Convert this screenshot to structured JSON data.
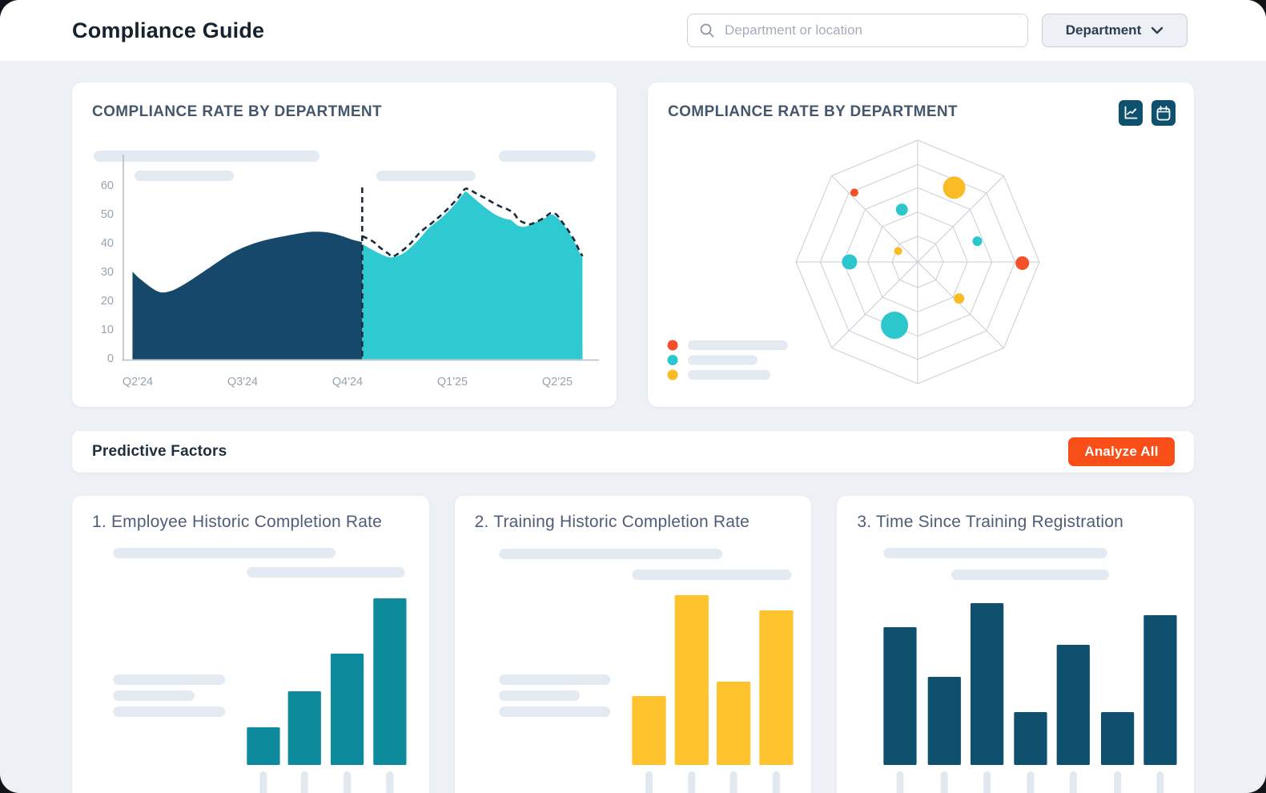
{
  "header": {
    "title": "Compliance Guide",
    "search_placeholder": "Department or location",
    "search_icon": "search-icon",
    "filter_label": "Department",
    "filter_icon": "chevron-down-icon"
  },
  "charts_row": {
    "area_card_title": "COMPLIANCE RATE BY DEPARTMENT",
    "radar_card_title": "COMPLIANCE RATE BY DEPARTMENT",
    "radar_card_icons": [
      "line-chart-icon",
      "calendar-icon"
    ]
  },
  "predictive": {
    "title": "Predictive Factors",
    "analyze_button_label": "Analyze All"
  },
  "factor_cards": [
    {
      "title": "1. Employee Historic Completion Rate"
    },
    {
      "title": "2. Training Historic Completion Rate"
    },
    {
      "title": "3. Time Since Training Registration"
    }
  ],
  "colors": {
    "navy": "#15486b",
    "navy_dark": "#0f506f",
    "teal_area": "#2fc9d2",
    "teal_bar": "#0e8a9d",
    "yellow": "#ffc32e",
    "orange": "#f94e18",
    "bubble_red": "#f4502a",
    "bubble_teal": "#2bc7cd",
    "bubble_yellow": "#f9bc25",
    "axis_line": "#b6bec7",
    "tick_label": "#98a3af",
    "grid": "#c9ced6",
    "skeleton": "#e4eaf2",
    "dash": "#1b2a38"
  },
  "chart_data": [
    {
      "id": "compliance-trend",
      "type": "area",
      "title": "COMPLIANCE RATE BY DEPARTMENT",
      "x_categories": [
        "Q2'24",
        "Q3'24",
        "Q4'24",
        "Q1'25",
        "Q2'25"
      ],
      "x_unit": "quarter-index (0 = Q2'24)",
      "y_ticks": [
        0,
        10,
        20,
        30,
        40,
        50,
        60
      ],
      "ylim": [
        0,
        65
      ],
      "divider_x": 2.14,
      "series": [
        {
          "name": "historical",
          "style": "area",
          "color_key": "navy",
          "points": [
            [
              -0.05,
              30
            ],
            [
              0.02,
              27.5
            ],
            [
              0.18,
              23.3
            ],
            [
              0.29,
              23
            ],
            [
              0.44,
              25.5
            ],
            [
              0.67,
              31
            ],
            [
              0.9,
              36.5
            ],
            [
              1.13,
              40
            ],
            [
              1.36,
              42
            ],
            [
              1.59,
              43.5
            ],
            [
              1.7,
              43.8
            ],
            [
              1.82,
              43.5
            ],
            [
              1.93,
              42.5
            ],
            [
              2.05,
              41
            ],
            [
              2.14,
              40.2
            ]
          ]
        },
        {
          "name": "forecast",
          "style": "area",
          "color_key": "teal_area",
          "points": [
            [
              2.14,
              40
            ],
            [
              2.24,
              38
            ],
            [
              2.35,
              36
            ],
            [
              2.43,
              35.4
            ],
            [
              2.54,
              37
            ],
            [
              2.66,
              41
            ],
            [
              2.77,
              45.5
            ],
            [
              2.89,
              49
            ],
            [
              3.0,
              53
            ],
            [
              3.1,
              57.5
            ],
            [
              3.13,
              58.2
            ],
            [
              3.19,
              56.5
            ],
            [
              3.27,
              54
            ],
            [
              3.34,
              52
            ],
            [
              3.42,
              50
            ],
            [
              3.5,
              48.8
            ],
            [
              3.56,
              48.3
            ],
            [
              3.59,
              47.5
            ],
            [
              3.63,
              46.3
            ],
            [
              3.69,
              46
            ],
            [
              3.76,
              47
            ],
            [
              3.88,
              49
            ],
            [
              3.94,
              50.2
            ],
            [
              3.99,
              49.5
            ],
            [
              4.07,
              46.5
            ],
            [
              4.15,
              42
            ],
            [
              4.2,
              38.5
            ],
            [
              4.24,
              35.2
            ]
          ]
        },
        {
          "name": "forecast-upper-bound",
          "style": "dashed-line",
          "color_key": "dash",
          "points": [
            [
              2.14,
              42.3
            ],
            [
              2.24,
              40.5
            ],
            [
              2.31,
              38.3
            ],
            [
              2.39,
              36.2
            ],
            [
              2.44,
              35.3
            ],
            [
              2.58,
              39
            ],
            [
              2.69,
              43.5
            ],
            [
              2.81,
              47
            ],
            [
              2.92,
              50.5
            ],
            [
              3.04,
              55
            ],
            [
              3.11,
              58.3
            ],
            [
              3.15,
              58.6
            ],
            [
              3.23,
              57
            ],
            [
              3.31,
              55.5
            ],
            [
              3.38,
              54
            ],
            [
              3.46,
              52.5
            ],
            [
              3.53,
              51.5
            ],
            [
              3.59,
              50
            ],
            [
              3.63,
              48
            ],
            [
              3.69,
              46.8
            ],
            [
              3.74,
              46.4
            ],
            [
              3.8,
              47.2
            ],
            [
              3.88,
              48.8
            ],
            [
              3.94,
              50.3
            ],
            [
              3.99,
              49.8
            ],
            [
              4.04,
              47.5
            ],
            [
              4.1,
              44.5
            ],
            [
              4.16,
              41
            ],
            [
              4.2,
              38
            ],
            [
              4.24,
              35.3
            ]
          ]
        }
      ]
    },
    {
      "id": "department-radar",
      "type": "scatter",
      "subtype": "radar-bubble",
      "rings": [
        1,
        0.8,
        0.61,
        0.41,
        0.21
      ],
      "spokes": 8,
      "bubbles": [
        {
          "x": -0.52,
          "y": -0.57,
          "r": 5,
          "color_key": "bubble_red"
        },
        {
          "x": 0.3,
          "y": -0.61,
          "r": 14,
          "color_key": "bubble_yellow"
        },
        {
          "x": -0.13,
          "y": -0.43,
          "r": 7.5,
          "color_key": "bubble_teal"
        },
        {
          "x": 0.49,
          "y": -0.17,
          "r": 6,
          "color_key": "bubble_teal"
        },
        {
          "x": 0.86,
          "y": 0.01,
          "r": 8.5,
          "color_key": "bubble_red"
        },
        {
          "x": -0.56,
          "y": 0.0,
          "r": 9.5,
          "color_key": "bubble_teal"
        },
        {
          "x": -0.16,
          "y": -0.09,
          "r": 5,
          "color_key": "bubble_yellow"
        },
        {
          "x": 0.34,
          "y": 0.3,
          "r": 6.5,
          "color_key": "bubble_yellow"
        },
        {
          "x": -0.19,
          "y": 0.52,
          "r": 17,
          "color_key": "bubble_teal"
        }
      ],
      "legend": [
        {
          "color_key": "bubble_red",
          "label": "",
          "placeholder": true
        },
        {
          "color_key": "bubble_teal",
          "label": "",
          "placeholder": true
        },
        {
          "color_key": "bubble_yellow",
          "label": "",
          "placeholder": true
        }
      ],
      "legend_position": "bottom-left"
    },
    {
      "id": "factor-1-employee-historic",
      "type": "bar",
      "color_key": "teal_bar",
      "values": [
        47,
        92,
        139,
        208
      ],
      "value_unit": "relative"
    },
    {
      "id": "factor-2-training-historic",
      "type": "bar",
      "color_key": "yellow",
      "values": [
        86,
        212,
        104,
        193
      ],
      "value_unit": "relative"
    },
    {
      "id": "factor-3-time-since-registration",
      "type": "bar",
      "color_key": "navy_dark",
      "values": [
        172,
        110,
        202,
        66,
        150,
        66,
        187
      ],
      "value_unit": "relative"
    }
  ]
}
